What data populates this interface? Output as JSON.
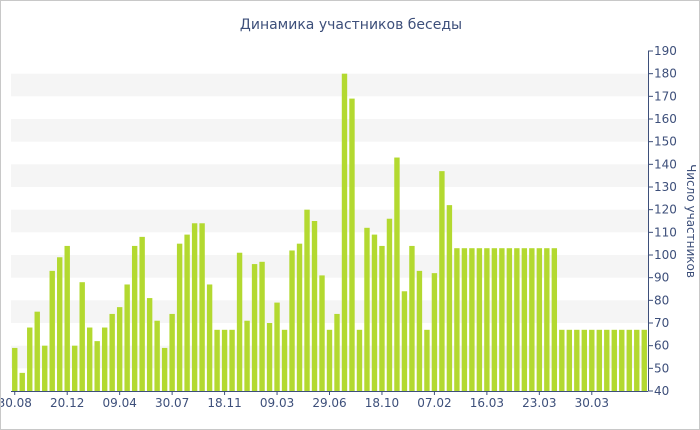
{
  "chart_data": {
    "type": "bar",
    "title": "Динамика участников беседы",
    "xlabel": "",
    "ylabel": "Число участников",
    "ylim": [
      40,
      190
    ],
    "y_ticks": [
      40,
      50,
      60,
      70,
      80,
      90,
      100,
      110,
      120,
      130,
      140,
      150,
      160,
      170,
      180,
      190
    ],
    "x_tick_labels": [
      "30.08",
      "20.12",
      "09.04",
      "30.07",
      "18.11",
      "09.03",
      "29.06",
      "18.10",
      "07.02",
      "16.03",
      "23.03",
      "30.03"
    ],
    "x_tick_bar_index": [
      0,
      7,
      14,
      21,
      28,
      35,
      42,
      49,
      56,
      63,
      70,
      77
    ],
    "grid": "horizontal-bands",
    "axis_position": "right",
    "colors": {
      "bar": "#b3d930",
      "band": "#f5f5f5",
      "text": "#3d4f7a",
      "axis": "#3d4f7a"
    },
    "values": [
      59,
      48,
      68,
      75,
      60,
      93,
      99,
      104,
      60,
      88,
      68,
      62,
      68,
      74,
      77,
      87,
      104,
      108,
      81,
      71,
      59,
      74,
      105,
      109,
      114,
      114,
      87,
      67,
      67,
      67,
      101,
      71,
      96,
      97,
      70,
      79,
      67,
      102,
      105,
      120,
      115,
      91,
      67,
      74,
      180,
      169,
      67,
      112,
      109,
      104,
      116,
      143,
      84,
      104,
      93,
      67,
      92,
      137,
      122,
      103,
      103,
      103,
      103,
      103,
      103,
      103,
      103,
      103,
      103,
      103,
      103,
      103,
      103,
      67,
      67,
      67,
      67,
      67,
      67,
      67,
      67,
      67,
      67,
      67,
      67
    ]
  }
}
